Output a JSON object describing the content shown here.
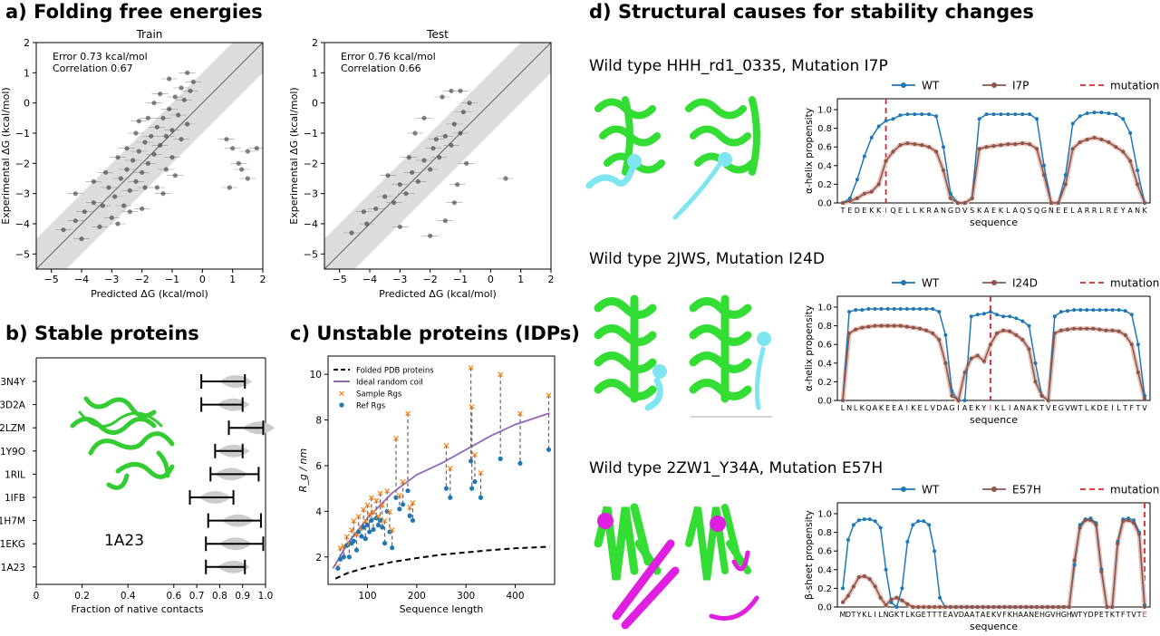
{
  "panels": {
    "a": {
      "title": "a) Folding free energies"
    },
    "b": {
      "title": "b) Stable proteins"
    },
    "c": {
      "title": "c) Unstable proteins (IDPs)"
    },
    "d": {
      "title": "d) Structural causes for stability changes",
      "row1": {
        "caption": "Wild type HHH_rd1_0335, Mutation I7P"
      },
      "row2": {
        "caption": "Wild type 2JWS, Mutation I24D"
      },
      "row3": {
        "caption": "Wild type 2ZW1_Y34A, Mutation E57H"
      }
    }
  },
  "colors": {
    "wt": "#1f77b4",
    "mut": "#8c564b",
    "site": "#d62728",
    "sample": "#ff7f0e",
    "coil": "#9467bd",
    "protein_green": "#33dd33",
    "loop_cyan": "#7fe5f0",
    "sheet_magenta": "#e020e0"
  },
  "chart_data": [
    {
      "id": "a-train",
      "type": "scatter",
      "title": "Train",
      "xlabel": "Predicted ΔG (kcal/mol)",
      "ylabel": "Experimental ΔG (kcal/mol)",
      "xlim": [
        -5.5,
        2
      ],
      "ylim": [
        -5.5,
        2
      ],
      "xticks": [
        "−5",
        "−4",
        "−3",
        "−2",
        "−1",
        "0",
        "1",
        "2"
      ],
      "yticks": [
        "−5",
        "−4",
        "−3",
        "−2",
        "−1",
        "0",
        "1",
        "2"
      ],
      "annotations": [
        "Error 0.73 kcal/mol",
        "Correlation 0.67"
      ],
      "diagonal_band": 1.0,
      "points": [
        [
          -4.6,
          -4.2
        ],
        [
          -4.2,
          -3.9
        ],
        [
          -3.9,
          -3.6
        ],
        [
          -3.6,
          -3.3
        ],
        [
          -3.3,
          -3.4
        ],
        [
          -3.1,
          -2.8
        ],
        [
          -2.9,
          -3.1
        ],
        [
          -2.7,
          -2.5
        ],
        [
          -2.6,
          -3.4
        ],
        [
          -2.5,
          -2.2
        ],
        [
          -2.4,
          -2.9
        ],
        [
          -2.3,
          -1.9
        ],
        [
          -2.2,
          -2.6
        ],
        [
          -2.1,
          -1.6
        ],
        [
          -2.0,
          -2.3
        ],
        [
          -1.9,
          -1.3
        ],
        [
          -1.8,
          -2.0
        ],
        [
          -1.7,
          -1.1
        ],
        [
          -1.6,
          -1.7
        ],
        [
          -1.5,
          -0.8
        ],
        [
          -1.4,
          -1.4
        ],
        [
          -1.3,
          -0.5
        ],
        [
          -1.2,
          -1.1
        ],
        [
          -1.1,
          -0.2
        ],
        [
          -1.0,
          -0.9
        ],
        [
          -0.9,
          0.2
        ],
        [
          -0.8,
          -0.4
        ],
        [
          -0.7,
          0.5
        ],
        [
          -0.6,
          0.1
        ],
        [
          -0.5,
          1.0
        ],
        [
          -0.4,
          0.4
        ],
        [
          -3.0,
          -3.8
        ],
        [
          -2.8,
          -4.0
        ],
        [
          -3.4,
          -4.1
        ],
        [
          -4.0,
          -4.5
        ],
        [
          -2.0,
          -3.5
        ],
        [
          -1.5,
          -2.8
        ],
        [
          -1.2,
          -2.2
        ],
        [
          -1.0,
          -1.8
        ],
        [
          -2.5,
          -1.5
        ],
        [
          -2.8,
          -1.8
        ],
        [
          -3.2,
          -2.3
        ],
        [
          -1.8,
          -0.5
        ],
        [
          -1.6,
          0.0
        ],
        [
          -2.2,
          -1.0
        ],
        [
          -0.7,
          -1.2
        ],
        [
          -0.5,
          -0.7
        ],
        [
          -0.3,
          0.7
        ],
        [
          0.8,
          -1.2
        ],
        [
          1.0,
          -1.5
        ],
        [
          1.3,
          -2.2
        ],
        [
          1.5,
          -2.5
        ],
        [
          0.9,
          -2.8
        ],
        [
          1.2,
          -2.0
        ],
        [
          1.8,
          -1.5
        ],
        [
          1.5,
          -1.6
        ],
        [
          -1.3,
          -3.0
        ],
        [
          -0.9,
          -2.4
        ],
        [
          -1.9,
          -2.8
        ],
        [
          -2.4,
          -3.6
        ],
        [
          -3.6,
          -2.6
        ],
        [
          -4.2,
          -3.0
        ],
        [
          -2.1,
          -0.6
        ],
        [
          -1.4,
          0.3
        ],
        [
          -1.1,
          0.8
        ]
      ]
    },
    {
      "id": "a-test",
      "type": "scatter",
      "title": "Test",
      "xlabel": "Predicted ΔG (kcal/mol)",
      "ylabel": "Experimental ΔG (kcal/mol)",
      "xlim": [
        -5.5,
        2
      ],
      "ylim": [
        -5.5,
        2
      ],
      "xticks": [
        "−5",
        "−4",
        "−3",
        "−2",
        "−1",
        "0",
        "1",
        "2"
      ],
      "yticks": [
        "−5",
        "−4",
        "−3",
        "−2",
        "−1",
        "0",
        "1",
        "2"
      ],
      "annotations": [
        "Error 0.76 kcal/mol",
        "Correlation 0.66"
      ],
      "diagonal_band": 1.0,
      "points": [
        [
          -4.6,
          -4.3
        ],
        [
          -4.1,
          -4.0
        ],
        [
          -3.8,
          -3.5
        ],
        [
          -3.5,
          -3.1
        ],
        [
          -3.2,
          -3.3
        ],
        [
          -3.0,
          -2.7
        ],
        [
          -2.8,
          -3.0
        ],
        [
          -2.6,
          -2.3
        ],
        [
          -2.4,
          -2.6
        ],
        [
          -2.2,
          -1.9
        ],
        [
          -2.0,
          -2.2
        ],
        [
          -1.9,
          -1.5
        ],
        [
          -1.7,
          -1.8
        ],
        [
          -1.5,
          -1.1
        ],
        [
          -1.3,
          -1.4
        ],
        [
          -1.2,
          -0.7
        ],
        [
          -1.0,
          -1.0
        ],
        [
          -0.9,
          -0.3
        ],
        [
          -0.7,
          0.0
        ],
        [
          -1.6,
          0.2
        ],
        [
          -1.3,
          0.4
        ],
        [
          -2.2,
          -0.5
        ],
        [
          -2.5,
          -1.0
        ],
        [
          -3.0,
          -4.1
        ],
        [
          -2.0,
          -4.4
        ],
        [
          -1.5,
          -3.9
        ],
        [
          -1.2,
          -3.3
        ],
        [
          0.5,
          -2.5
        ],
        [
          -0.8,
          -2.0
        ],
        [
          -1.1,
          -2.7
        ],
        [
          -1.8,
          -1.2
        ],
        [
          -2.7,
          -1.8
        ],
        [
          -3.4,
          -2.4
        ],
        [
          -4.2,
          -3.6
        ],
        [
          -1.0,
          0.4
        ]
      ]
    },
    {
      "id": "b",
      "type": "violin",
      "xlabel": "Fraction of native contacts",
      "xlim": [
        0,
        1
      ],
      "xticks": [
        "0",
        "0.2",
        "0.4",
        "0.6",
        "0.7",
        "0.8",
        "0.9",
        "1.0"
      ],
      "xtick_values": [
        0,
        0.2,
        0.4,
        0.6,
        0.7,
        0.8,
        0.9,
        1.0
      ],
      "structure_label": "1A23",
      "categories": [
        "3N4Y",
        "3D2A",
        "2LZM",
        "1Y9O",
        "1RIL",
        "1IFB",
        "1H7M",
        "1EKG",
        "1A23"
      ],
      "ranges": [
        [
          0.72,
          0.91
        ],
        [
          0.72,
          0.9
        ],
        [
          0.84,
          0.99
        ],
        [
          0.78,
          0.9
        ],
        [
          0.76,
          0.97
        ],
        [
          0.67,
          0.86
        ],
        [
          0.75,
          0.98
        ],
        [
          0.74,
          0.99
        ],
        [
          0.74,
          0.91
        ]
      ],
      "modes": [
        0.87,
        0.86,
        0.97,
        0.86,
        0.85,
        0.78,
        0.88,
        0.87,
        0.86
      ]
    },
    {
      "id": "c",
      "type": "scatter",
      "xlabel": "Sequence length",
      "ylabel": "R_g / nm",
      "xlim": [
        20,
        480
      ],
      "ylim": [
        0.8,
        10.8
      ],
      "xticks": [
        "100",
        "200",
        "300",
        "400"
      ],
      "xtick_values": [
        100,
        200,
        300,
        400
      ],
      "yticks": [
        "2",
        "4",
        "6",
        "8",
        "10"
      ],
      "ytick_values": [
        2,
        4,
        6,
        8,
        10
      ],
      "legend": [
        "Folded PDB proteins",
        "Ideal random coil",
        "Sample Rgs",
        "Ref Rgs"
      ],
      "pairs": [
        [
          40,
          1.6,
          1.5
        ],
        [
          45,
          2.4,
          1.9
        ],
        [
          52,
          2.5,
          2.0
        ],
        [
          58,
          2.9,
          2.5
        ],
        [
          63,
          2.6,
          2.0
        ],
        [
          68,
          3.2,
          2.6
        ],
        [
          72,
          3.6,
          2.7
        ],
        [
          78,
          3.0,
          2.3
        ],
        [
          82,
          3.8,
          3.1
        ],
        [
          88,
          3.3,
          2.9
        ],
        [
          92,
          4.1,
          3.3
        ],
        [
          96,
          3.6,
          2.8
        ],
        [
          100,
          4.3,
          3.4
        ],
        [
          104,
          3.9,
          3.1
        ],
        [
          108,
          4.6,
          3.6
        ],
        [
          112,
          4.0,
          3.2
        ],
        [
          118,
          4.5,
          3.7
        ],
        [
          122,
          3.8,
          3.4
        ],
        [
          126,
          4.8,
          3.6
        ],
        [
          130,
          4.3,
          3.3
        ],
        [
          135,
          3.6,
          2.6
        ],
        [
          140,
          4.9,
          4.0
        ],
        [
          145,
          4.0,
          3.1
        ],
        [
          150,
          3.2,
          2.4
        ],
        [
          158,
          7.2,
          4.6
        ],
        [
          165,
          4.7,
          4.1
        ],
        [
          172,
          5.3,
          4.3
        ],
        [
          182,
          8.3,
          4.9
        ],
        [
          186,
          4.2,
          3.8
        ],
        [
          192,
          4.4,
          3.6
        ],
        [
          260,
          6.9,
          5.0
        ],
        [
          268,
          5.9,
          4.6
        ],
        [
          310,
          10.3,
          6.2
        ],
        [
          312,
          8.6,
          5.0
        ],
        [
          318,
          6.5,
          5.3
        ],
        [
          330,
          5.7,
          4.6
        ],
        [
          370,
          10.0,
          6.3
        ],
        [
          410,
          8.3,
          6.1
        ],
        [
          468,
          9.1,
          6.7
        ]
      ],
      "coil_curve": [
        [
          30,
          1.5
        ],
        [
          60,
          2.6
        ],
        [
          100,
          3.7
        ],
        [
          150,
          4.8
        ],
        [
          200,
          5.6
        ],
        [
          250,
          6.1
        ],
        [
          300,
          6.7
        ],
        [
          350,
          7.3
        ],
        [
          400,
          7.8
        ],
        [
          470,
          8.3
        ]
      ],
      "folded_curve": [
        [
          35,
          1.05
        ],
        [
          60,
          1.3
        ],
        [
          100,
          1.55
        ],
        [
          150,
          1.78
        ],
        [
          200,
          1.95
        ],
        [
          250,
          2.1
        ],
        [
          300,
          2.2
        ],
        [
          350,
          2.3
        ],
        [
          400,
          2.38
        ],
        [
          470,
          2.45
        ]
      ]
    },
    {
      "id": "d1",
      "type": "line",
      "xlabel": "sequence",
      "ylabel": "α-helix propensity",
      "ylim": [
        0,
        1.0
      ],
      "yticks": [
        "0.0",
        "0.2",
        "0.4",
        "0.6",
        "0.8",
        "1.0"
      ],
      "legend": [
        "WT",
        "I7P",
        "mutation site"
      ],
      "sequence": "TEDEKKIQELLKRANGDVSKAEKLAQSQGNEELARRLREYANK",
      "mutation_index": 6,
      "wt": [
        0,
        0.05,
        0.25,
        0.5,
        0.7,
        0.82,
        0.88,
        0.9,
        0.94,
        0.95,
        0.95,
        0.95,
        0.95,
        0.93,
        0.6,
        0.1,
        0,
        0,
        0.05,
        0.9,
        0.95,
        0.95,
        0.95,
        0.95,
        0.95,
        0.95,
        0.95,
        0.9,
        0.4,
        0,
        0,
        0.3,
        0.85,
        0.93,
        0.96,
        0.97,
        0.97,
        0.96,
        0.95,
        0.9,
        0.75,
        0.35,
        0
      ],
      "mut": [
        0,
        0.02,
        0.05,
        0.1,
        0.12,
        0.2,
        0.45,
        0.55,
        0.62,
        0.64,
        0.63,
        0.62,
        0.6,
        0.55,
        0.35,
        0.05,
        0,
        0,
        0.05,
        0.58,
        0.6,
        0.61,
        0.62,
        0.63,
        0.63,
        0.64,
        0.63,
        0.58,
        0.3,
        0,
        0,
        0.2,
        0.58,
        0.65,
        0.68,
        0.7,
        0.68,
        0.65,
        0.6,
        0.55,
        0.45,
        0.2,
        0
      ]
    },
    {
      "id": "d2",
      "type": "line",
      "xlabel": "sequence",
      "ylabel": "α-helix propensity",
      "ylim": [
        0,
        1.0
      ],
      "yticks": [
        "0.0",
        "0.2",
        "0.4",
        "0.6",
        "0.8",
        "1.0"
      ],
      "legend": [
        "WT",
        "I24D",
        "mutation site"
      ],
      "sequence": "LNLKQAKEEAIKELVDAGIAEKYIKLIANAKTVEGVWTLKDEILTFTV",
      "mutation_index": 23,
      "wt": [
        0,
        0.95,
        0.97,
        0.97,
        0.98,
        0.98,
        0.98,
        0.98,
        0.98,
        0.98,
        0.98,
        0.98,
        0.98,
        0.98,
        0.98,
        0.95,
        0.7,
        0.1,
        0,
        0,
        0.9,
        0.92,
        0.93,
        0.95,
        0.92,
        0.9,
        0.9,
        0.88,
        0.85,
        0.8,
        0.4,
        0.05,
        0,
        0.9,
        0.95,
        0.96,
        0.97,
        0.97,
        0.97,
        0.97,
        0.97,
        0.97,
        0.97,
        0.97,
        0.96,
        0.92,
        0.6,
        0.05
      ],
      "mut": [
        0,
        0.72,
        0.76,
        0.78,
        0.79,
        0.8,
        0.8,
        0.8,
        0.8,
        0.8,
        0.79,
        0.78,
        0.77,
        0.75,
        0.72,
        0.65,
        0.4,
        0.05,
        0,
        0.3,
        0.45,
        0.48,
        0.42,
        0.6,
        0.72,
        0.75,
        0.74,
        0.7,
        0.65,
        0.55,
        0.2,
        0.05,
        0,
        0.72,
        0.75,
        0.76,
        0.77,
        0.77,
        0.77,
        0.77,
        0.76,
        0.75,
        0.75,
        0.74,
        0.7,
        0.6,
        0.3,
        0.02
      ]
    },
    {
      "id": "d3",
      "type": "line",
      "xlabel": "sequence",
      "ylabel": "β-sheet propensity",
      "ylim": [
        0,
        1.0
      ],
      "yticks": [
        "0.0",
        "0.2",
        "0.4",
        "0.6",
        "0.8",
        "1.0"
      ],
      "legend": [
        "WT",
        "E57H",
        "mutation site"
      ],
      "sequence": "MDTYKLILNGKTLKGETTTEAVDAATAEKVFKHAANEHGVHGHWTYDPETKTFTVTE",
      "mutation_index": 56,
      "wt": [
        0.2,
        0.72,
        0.88,
        0.93,
        0.94,
        0.94,
        0.92,
        0.85,
        0.4,
        0.05,
        0,
        0.2,
        0.7,
        0.88,
        0.92,
        0.92,
        0.88,
        0.6,
        0.1,
        0,
        0,
        0,
        0,
        0,
        0,
        0,
        0,
        0,
        0,
        0,
        0,
        0,
        0,
        0,
        0,
        0,
        0,
        0,
        0,
        0,
        0,
        0,
        0,
        0.45,
        0.88,
        0.94,
        0.95,
        0.9,
        0.4,
        0,
        0,
        0.7,
        0.94,
        0.95,
        0.93,
        0.8,
        0.02
      ],
      "mut": [
        0.05,
        0.12,
        0.22,
        0.32,
        0.33,
        0.3,
        0.22,
        0.1,
        0.02,
        0.08,
        0.1,
        0.07,
        0.03,
        0,
        0,
        0,
        0,
        0,
        0,
        0,
        0,
        0,
        0,
        0,
        0,
        0,
        0,
        0,
        0,
        0,
        0,
        0,
        0,
        0,
        0,
        0,
        0,
        0,
        0,
        0,
        0,
        0,
        0,
        0.5,
        0.85,
        0.93,
        0.93,
        0.88,
        0.38,
        0,
        0,
        0.68,
        0.92,
        0.93,
        0.9,
        0.78,
        0
      ]
    }
  ]
}
